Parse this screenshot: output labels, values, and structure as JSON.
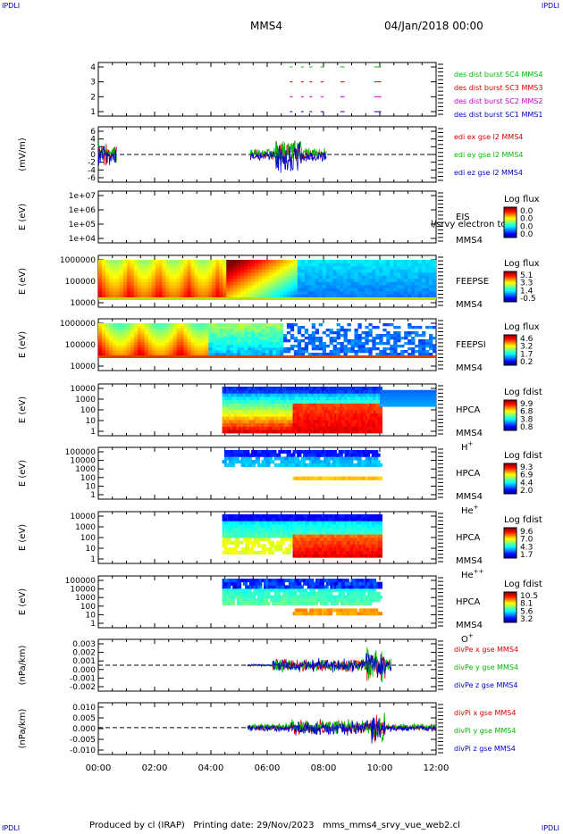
{
  "header": {
    "spacecraft": "MMS4",
    "date": "04/Jan/2018 00:00",
    "corner_label": "IPDLI"
  },
  "footer": {
    "producer": "Produced by cl (IRAP)",
    "printing_date": "Printing date: 29/Nov/2023",
    "source": "mms_mms4_srvy_vue_web2.cl"
  },
  "colors": {
    "mms1": "#0000cc",
    "mms2": "#cc00cc",
    "mms3": "#dd0000",
    "mms4": "#00bb00",
    "x_comp": "#dd0000",
    "y_comp": "#00bb00",
    "z_comp": "#0000cc"
  },
  "chart_data": {
    "type": "multi-panel",
    "x_axis": {
      "range": [
        "00:00",
        "12:00"
      ],
      "tick_labels": [
        "00:00",
        "02:00",
        "04:00",
        "06:00",
        "08:00",
        "10:00",
        "12:00"
      ]
    },
    "panels": [
      {
        "id": "burst",
        "type": "line",
        "ylabel": "",
        "ylim": [
          0.5,
          4.5
        ],
        "yticks": [
          "1",
          "2",
          "3",
          "4"
        ],
        "legend": [
          {
            "text": "des dist burst SC1 MMS1",
            "color": "#0000cc",
            "level": 1
          },
          {
            "text": "des dist burst SC2 MMS2",
            "color": "#cc00cc",
            "level": 2
          },
          {
            "text": "des dist burst SC3 MMS3",
            "color": "#dd0000",
            "level": 3
          },
          {
            "text": "des dist burst SC4 MMS4",
            "color": "#00bb00",
            "level": 4
          }
        ],
        "intervals_hours": [
          [
            6.8,
            6.9
          ],
          [
            7.2,
            7.3
          ],
          [
            7.5,
            7.6
          ],
          [
            7.9,
            8.0
          ],
          [
            8.6,
            8.75
          ],
          [
            9.8,
            10.05
          ]
        ]
      },
      {
        "id": "efield",
        "type": "line",
        "ylabel": "(mV/m)",
        "ylim": [
          -6,
          6
        ],
        "yticks": [
          "6",
          "4",
          "2",
          "0",
          "-2",
          "-4",
          "-6"
        ],
        "legend": [
          {
            "text": "edi ex gse l2 MMS4",
            "color": "#dd0000"
          },
          {
            "text": "edi ey gse l2 MMS4",
            "color": "#00bb00"
          },
          {
            "text": "edi ez gse l2 MMS4",
            "color": "#0000cc"
          }
        ]
      },
      {
        "id": "eis",
        "type": "heatmap",
        "ylabel": "E (eV)",
        "yticks": [
          "1e+07",
          "1e+06",
          "1e+05",
          "1e+04"
        ],
        "instrument": "EIS",
        "overlay_text": "l/srvy electron to",
        "spacecraft": "MMS4",
        "colorbar": {
          "title": "Log flux",
          "ticks": [
            "0.0",
            "0.0",
            "0.0",
            "0.0"
          ]
        }
      },
      {
        "id": "feepse",
        "type": "heatmap",
        "ylabel": "E (eV)",
        "yticks": [
          "1000000",
          "100000",
          "10000"
        ],
        "instrument": "FEEPSE",
        "spacecraft": "MMS4",
        "colorbar": {
          "title": "Log flux",
          "ticks": [
            "5.1",
            "3.3",
            "1.4",
            "-0.5"
          ]
        }
      },
      {
        "id": "feepsi",
        "type": "heatmap",
        "ylabel": "E (eV)",
        "yticks": [
          "1000000",
          "100000",
          "10000"
        ],
        "instrument": "FEEPSI",
        "spacecraft": "MMS4",
        "colorbar": {
          "title": "Log flux",
          "ticks": [
            "4.6",
            "3.2",
            "1.7",
            "0.2"
          ]
        }
      },
      {
        "id": "hpca_h",
        "type": "heatmap",
        "ylabel": "E (eV)",
        "yticks": [
          "10000",
          "1000",
          "100",
          "10",
          "1"
        ],
        "instrument": "HPCA",
        "spacecraft": "MMS4",
        "species": "H",
        "charge": "+",
        "colorbar": {
          "title": "Log fdist",
          "ticks": [
            "9.9",
            "6.8",
            "3.8",
            "0.8"
          ]
        }
      },
      {
        "id": "hpca_he",
        "type": "heatmap",
        "ylabel": "E (eV)",
        "yticks": [
          "100000",
          "10000",
          "1000",
          "100",
          "10",
          "1"
        ],
        "instrument": "HPCA",
        "spacecraft": "MMS4",
        "species": "He",
        "charge": "+",
        "colorbar": {
          "title": "Log fdist",
          "ticks": [
            "9.3",
            "6.9",
            "4.4",
            "2.0"
          ]
        }
      },
      {
        "id": "hpca_he2",
        "type": "heatmap",
        "ylabel": "E (eV)",
        "yticks": [
          "10000",
          "1000",
          "100",
          "10",
          "1"
        ],
        "instrument": "HPCA",
        "spacecraft": "MMS4",
        "species": "He",
        "charge": "++",
        "colorbar": {
          "title": "Log fdist",
          "ticks": [
            "9.6",
            "7.0",
            "4.3",
            "1.7"
          ]
        }
      },
      {
        "id": "hpca_o",
        "type": "heatmap",
        "ylabel": "E (eV)",
        "yticks": [
          "100000",
          "10000",
          "1000",
          "100",
          "10",
          "1"
        ],
        "instrument": "HPCA",
        "spacecraft": "MMS4",
        "species": "O",
        "charge": "+",
        "colorbar": {
          "title": "Log fdist",
          "ticks": [
            "10.5",
            "8.1",
            "5.6",
            "3.2"
          ]
        }
      },
      {
        "id": "divpe",
        "type": "line",
        "ylabel": "(nPa/km)",
        "ylim": [
          -0.0025,
          0.0035
        ],
        "yticks": [
          "0.003",
          "0.002",
          "0.001",
          "0.000",
          "-0.001",
          "-0.002"
        ],
        "legend": [
          {
            "text": "divPe x gse MMS4",
            "color": "#dd0000"
          },
          {
            "text": "divPe y gse MMS4",
            "color": "#00bb00"
          },
          {
            "text": "divPe z gse MMS4",
            "color": "#0000cc"
          }
        ]
      },
      {
        "id": "divpi",
        "type": "line",
        "ylabel": "(nPa/km)",
        "ylim": [
          -0.015,
          0.013
        ],
        "yticks": [
          "0.010",
          "0.005",
          "0.000",
          "-0.005",
          "-0.010"
        ],
        "legend": [
          {
            "text": "divPi x gse MMS4",
            "color": "#dd0000"
          },
          {
            "text": "divPi y gse MMS4",
            "color": "#00bb00"
          },
          {
            "text": "divPi z gse MMS4",
            "color": "#0000cc"
          }
        ]
      }
    ]
  }
}
